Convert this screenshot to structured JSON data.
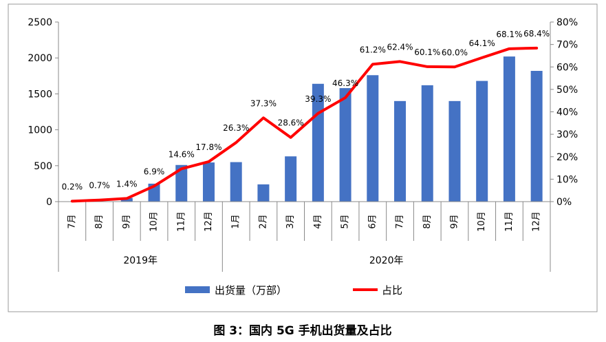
{
  "chart_data": {
    "type": "bar",
    "categories": [
      "7月",
      "8月",
      "9月",
      "10月",
      "11月",
      "12月",
      "1月",
      "2月",
      "3月",
      "4月",
      "5月",
      "6月",
      "7月",
      "8月",
      "9月",
      "10月",
      "11月",
      "12月"
    ],
    "groups": [
      {
        "label": "2019年",
        "count": 6
      },
      {
        "label": "2020年",
        "count": 12
      }
    ],
    "series": [
      {
        "name": "出货量（万部）",
        "type": "bar",
        "axis": "left",
        "color": "#4472C4",
        "values": [
          0,
          0,
          50,
          250,
          510,
          545,
          550,
          240,
          630,
          1640,
          1580,
          1760,
          1400,
          1620,
          1400,
          1680,
          2020,
          1820
        ]
      },
      {
        "name": "占比",
        "type": "line",
        "axis": "right",
        "color": "#FF0000",
        "values": [
          0.2,
          0.7,
          1.4,
          6.9,
          14.6,
          17.8,
          26.3,
          37.3,
          28.6,
          39.3,
          46.3,
          61.2,
          62.4,
          60.1,
          60.0,
          64.1,
          68.1,
          68.4
        ],
        "labels": [
          "0.2%",
          "0.7%",
          "1.4%",
          "6.9%",
          "14.6%",
          "17.8%",
          "26.3%",
          "37.3%",
          "28.6%",
          "39.3%",
          "46.3%",
          "61.2%",
          "62.4%",
          "60.1%",
          "60.0%",
          "64.1%",
          "68.1%",
          "68.4%"
        ]
      }
    ],
    "y_left": {
      "min": 0,
      "max": 2500,
      "ticks": [
        "0",
        "500",
        "1000",
        "1500",
        "2000",
        "2500"
      ]
    },
    "y_right": {
      "min": 0,
      "max": 80,
      "ticks": [
        "0%",
        "10%",
        "20%",
        "30%",
        "40%",
        "50%",
        "60%",
        "70%",
        "80%"
      ]
    },
    "legend": {
      "position": "bottom",
      "entries": [
        "出货量（万部）",
        "占比"
      ]
    },
    "caption": "图 3：国内 5G 手机出货量及占比",
    "grid": false
  }
}
